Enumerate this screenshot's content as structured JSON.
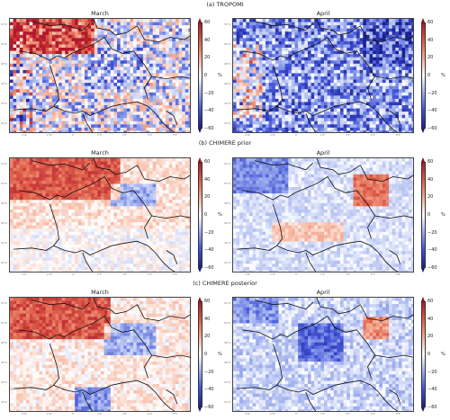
{
  "rows": [
    {
      "title": "(a) TROPOMI",
      "panels": [
        {
          "title": "March"
        },
        {
          "title": "April"
        }
      ]
    },
    {
      "title": "(b) CHIMERE prior",
      "panels": [
        {
          "title": "March"
        },
        {
          "title": "April"
        }
      ]
    },
    {
      "title": "(c) CHIMERE posterior",
      "panels": [
        {
          "title": "March"
        },
        {
          "title": "April"
        }
      ]
    }
  ],
  "colorbar": {
    "ticks": [
      "60",
      "40",
      "20",
      "0",
      "−20",
      "−40",
      "−60"
    ],
    "unit": "%",
    "range": [
      -60,
      60
    ],
    "colors": {
      "high": "#b2182b",
      "mid": "#ffffff",
      "low": "#1a1f8c"
    }
  },
  "axis_labels": {
    "lat": [
      "52°N",
      "50°N",
      "48°N",
      "46°N",
      "44°N",
      "42°N"
    ],
    "lon": [
      "4°W",
      "2°W",
      "0°",
      "2°E",
      "4°E",
      "6°E",
      "8°E"
    ]
  }
}
